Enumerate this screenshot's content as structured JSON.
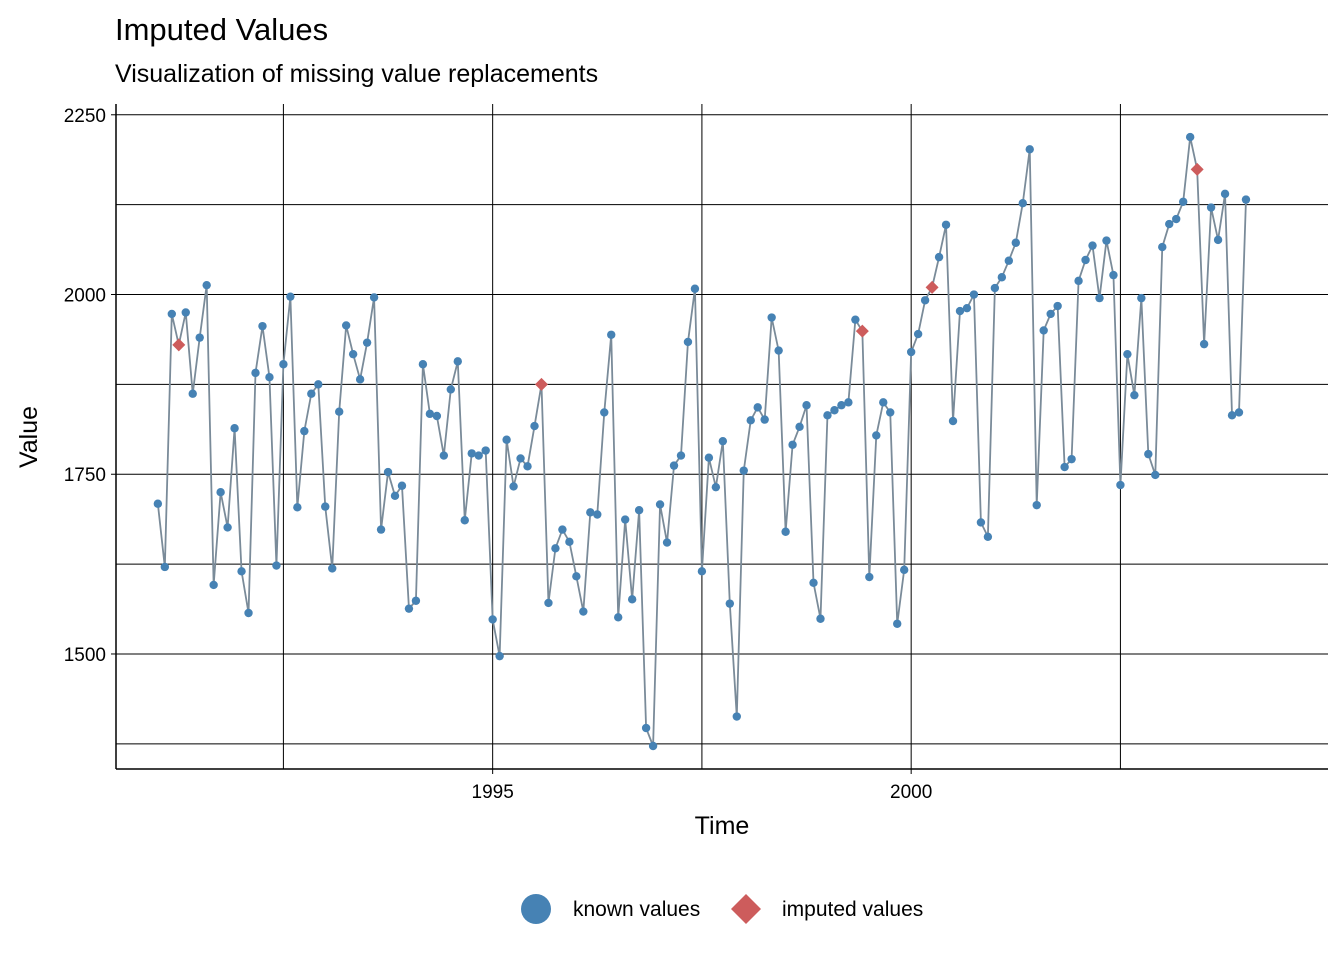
{
  "chart_data": {
    "type": "line",
    "title": "Imputed Values",
    "subtitle": "Visualization of missing value replacements",
    "xlabel": "Time",
    "ylabel": "Value",
    "xlim": [
      1990.5,
      2004.98
    ],
    "ylim": [
      1340,
      2265
    ],
    "x_ticks": [
      1995,
      2000
    ],
    "y_ticks": [
      1500,
      1750,
      2000,
      2250
    ],
    "x_minor_gridlines": [
      1992.5,
      1997.5,
      2002.5
    ],
    "y_minor_gridlines": [
      1375,
      1625,
      1875,
      2125
    ],
    "grid": true,
    "legend_position": "bottom",
    "start_year": 1991,
    "start_month": 1,
    "frequency": 12,
    "line_color": "#7a8b99",
    "known_color": "#4682b4",
    "imputed_color": "#cd5c5c",
    "values": [
      1709,
      1621,
      1973,
      1930,
      1975,
      1862,
      1940,
      2013,
      1596,
      1725,
      1676,
      1814,
      1615,
      1557,
      1891,
      1956,
      1885,
      1623,
      1903,
      1997,
      1704,
      1810,
      1862,
      1875,
      1705,
      1619,
      1837,
      1957,
      1917,
      1882,
      1933,
      1996,
      1673,
      1753,
      1720,
      1734,
      1563,
      1574,
      1903,
      1834,
      1831,
      1776,
      1868,
      1907,
      1686,
      1779,
      1776,
      1783,
      1548,
      1497,
      1798,
      1733,
      1772,
      1761,
      1817,
      1875,
      1571,
      1647,
      1673,
      1656,
      1608,
      1559,
      1697,
      1694,
      1836,
      1944,
      1551,
      1687,
      1576,
      1700,
      1397,
      1372,
      1708,
      1655,
      1762,
      1776,
      1934,
      2008,
      1615,
      1773,
      1732,
      1796,
      1570,
      1413,
      1755,
      1825,
      1843,
      1826,
      1968,
      1922,
      1670,
      1791,
      1816,
      1846,
      1599,
      1549,
      1832,
      1839,
      1846,
      1850,
      1965,
      1949,
      1607,
      1804,
      1850,
      1836,
      1542,
      1617,
      1920,
      1945,
      1992,
      2010,
      2052,
      2097,
      1824,
      1977,
      1981,
      2000,
      1683,
      1663,
      2009,
      2024,
      2047,
      2072,
      2127,
      2202,
      1707,
      1950,
      1973,
      1984,
      1760,
      1771,
      2019,
      2048,
      2068,
      1995,
      2075,
      2027,
      1735,
      1917,
      1860,
      1995,
      1778,
      1749,
      2066,
      2098,
      2105,
      2129,
      2219,
      2174,
      1931,
      2121,
      2076,
      2140,
      1832,
      1836,
      2132
    ],
    "imputed_index": [
      3,
      55,
      101,
      111,
      149
    ],
    "legend": [
      {
        "key": "known",
        "label": "known values"
      },
      {
        "key": "imputed",
        "label": "imputed values"
      }
    ]
  }
}
